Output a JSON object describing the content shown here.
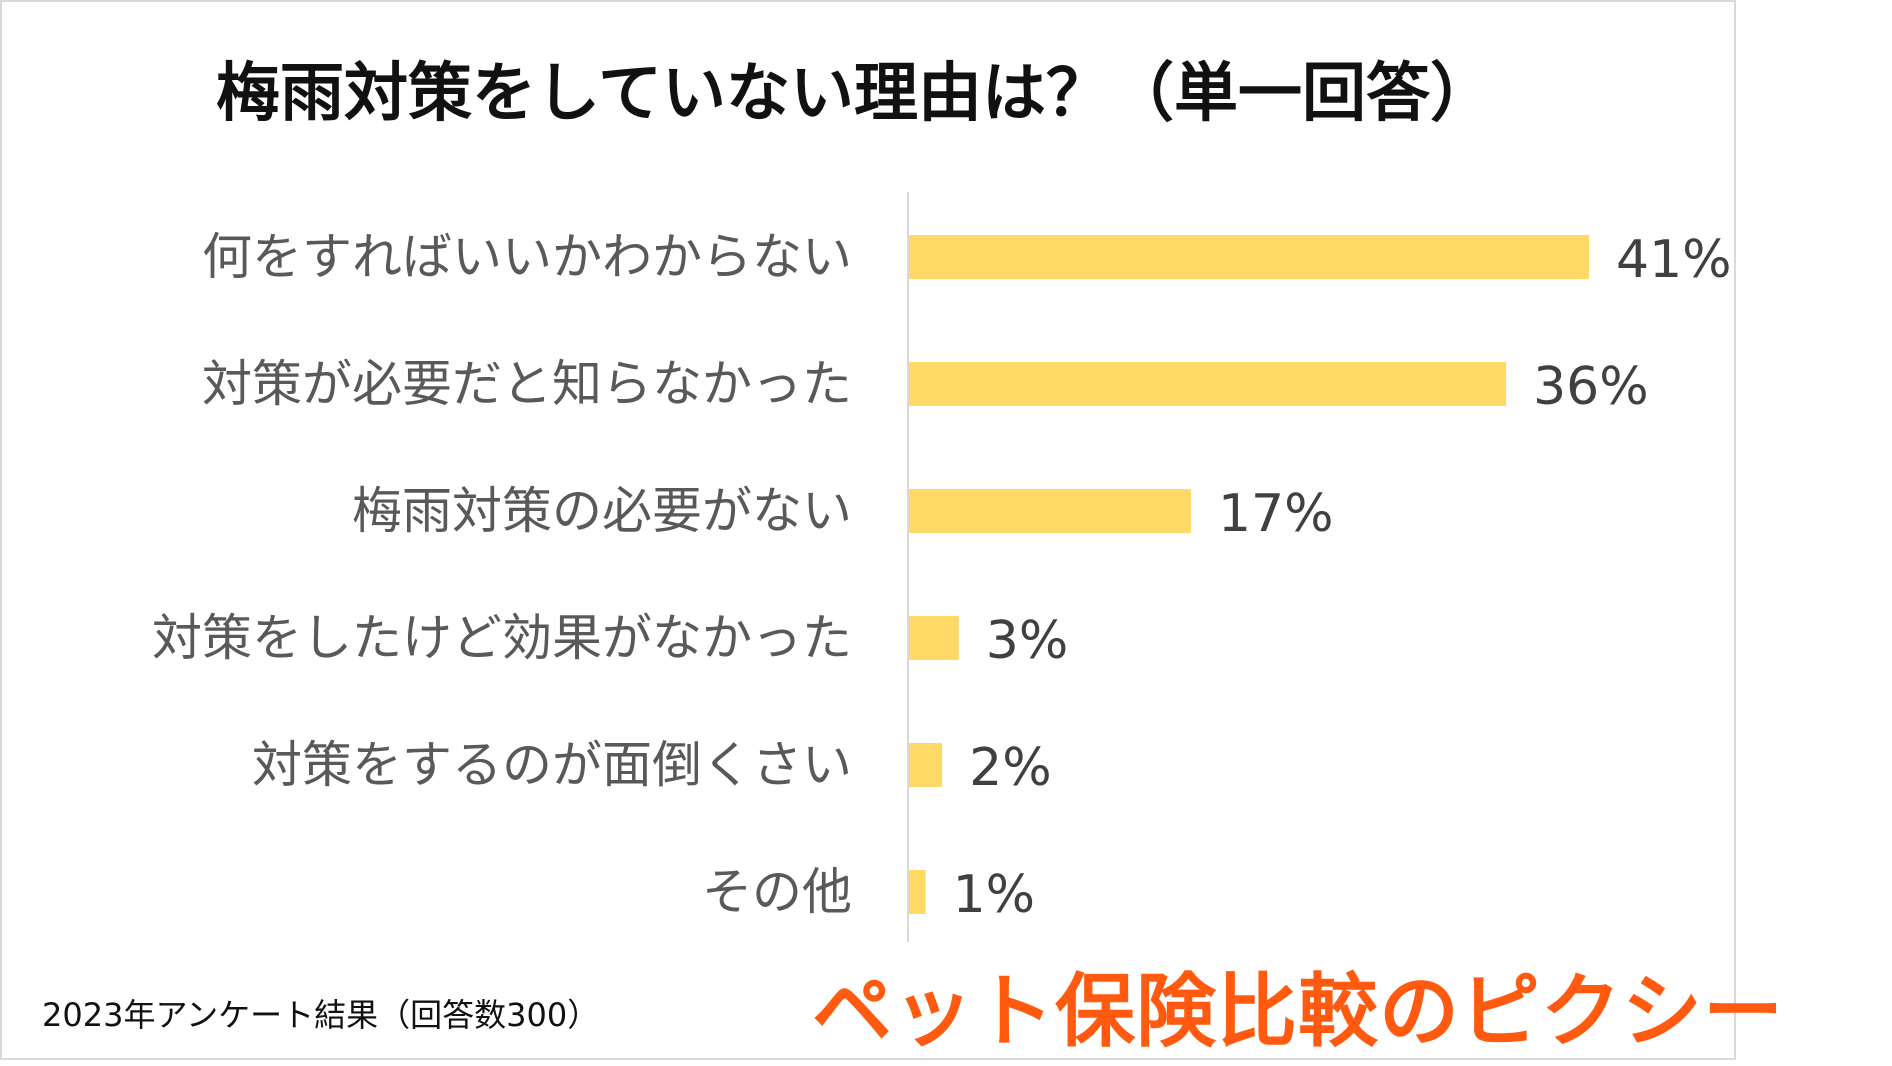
{
  "title": "梅雨対策をしていない理由は？（単一回答）",
  "footnote": "2023年アンケート結果（回答数300）",
  "brand": "ペット保険比較のピクシー",
  "colors": {
    "bar": "#ffd966",
    "axis": "#d9d9d9",
    "brand": "#ff5a0f"
  },
  "chart_data": {
    "type": "bar",
    "orientation": "horizontal",
    "categories": [
      "何をすればいいかわからない",
      "対策が必要だと知らなかった",
      "梅雨対策の必要がない",
      "対策をしたけど効果がなかった",
      "対策をするのが面倒くさい",
      "その他"
    ],
    "values": [
      41,
      36,
      17,
      3,
      2,
      1
    ],
    "value_labels": [
      "41%",
      "36%",
      "17%",
      "3%",
      "2%",
      "1%"
    ],
    "unit": "%",
    "xlim": [
      0,
      45
    ],
    "grid": false,
    "legend": "none"
  }
}
